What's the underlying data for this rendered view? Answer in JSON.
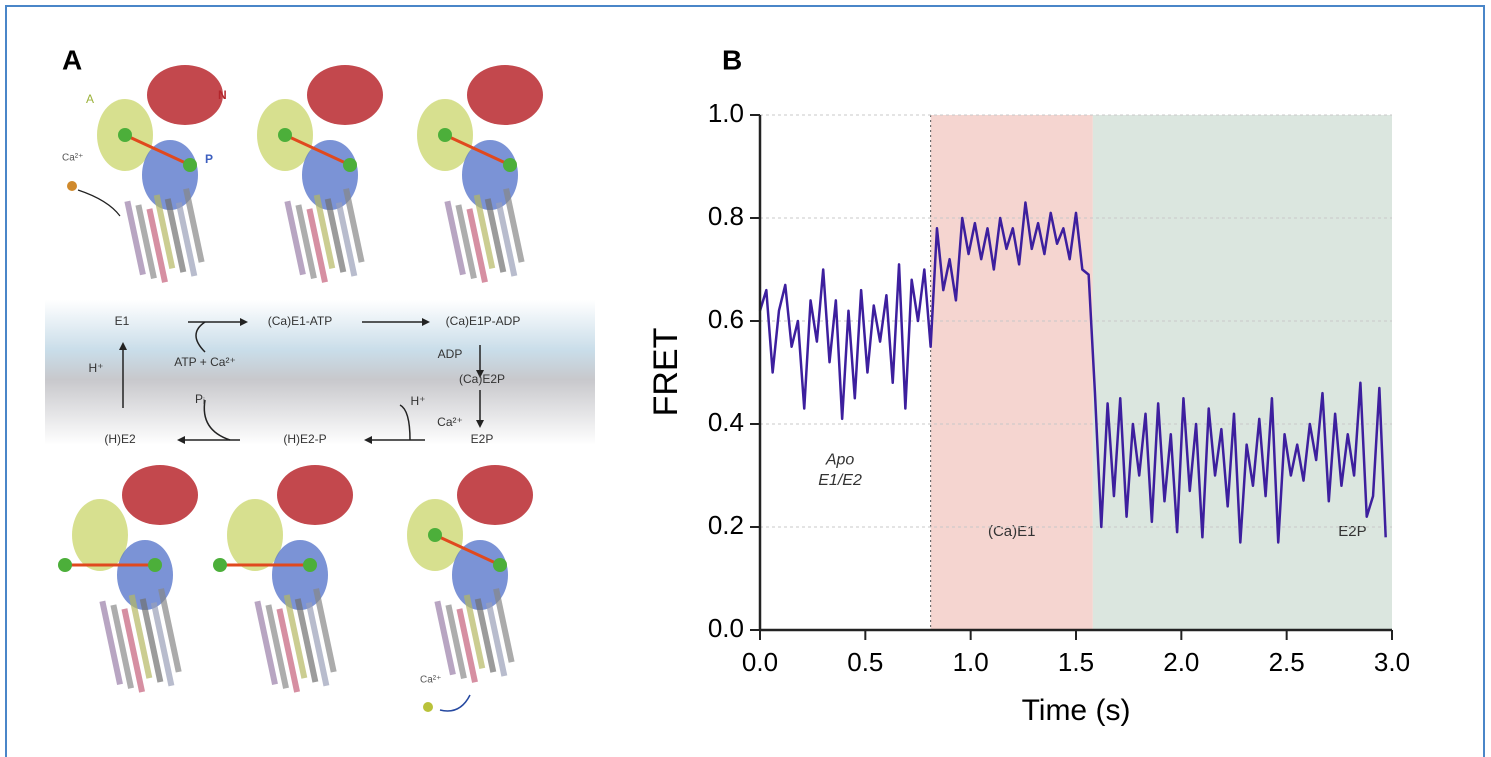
{
  "panel_a": {
    "letter": "A",
    "labels": {
      "e1": "E1",
      "ca_e1_atp": "(Ca)E1-ATP",
      "ca_e1p_adp": "(Ca)E1P-ADP",
      "atp_ca": "ATP + Ca²⁺",
      "adp": "ADP",
      "ca_e2p": "(Ca)E2P",
      "h_left": "H⁺",
      "h_right": "H⁺",
      "ca_release": "Ca²⁺",
      "e2p": "E2P",
      "h_e2_p": "(H)E2-P",
      "h_e2": "(H)E2",
      "pi": "Pᵢ",
      "domain_a": "A",
      "domain_n": "N",
      "domain_p": "P",
      "ca_top": "Ca²⁺",
      "ca_bottom": "Ca²⁺"
    }
  },
  "chart_data": {
    "type": "line",
    "panel_letter": "B",
    "x_label": "Time (s)",
    "y_label": "FRET",
    "x": [
      0.0,
      0.03,
      0.06,
      0.09,
      0.12,
      0.15,
      0.18,
      0.21,
      0.24,
      0.27,
      0.3,
      0.33,
      0.36,
      0.39,
      0.42,
      0.45,
      0.48,
      0.51,
      0.54,
      0.57,
      0.6,
      0.63,
      0.66,
      0.69,
      0.72,
      0.75,
      0.78,
      0.81,
      0.84,
      0.87,
      0.9,
      0.93,
      0.96,
      0.99,
      1.02,
      1.05,
      1.08,
      1.11,
      1.14,
      1.17,
      1.2,
      1.23,
      1.26,
      1.29,
      1.32,
      1.35,
      1.38,
      1.41,
      1.44,
      1.47,
      1.5,
      1.53,
      1.56,
      1.59,
      1.62,
      1.65,
      1.68,
      1.71,
      1.74,
      1.77,
      1.8,
      1.83,
      1.86,
      1.89,
      1.92,
      1.95,
      1.98,
      2.01,
      2.04,
      2.07,
      2.1,
      2.13,
      2.16,
      2.19,
      2.22,
      2.25,
      2.28,
      2.31,
      2.34,
      2.37,
      2.4,
      2.43,
      2.46,
      2.49,
      2.52,
      2.55,
      2.58,
      2.61,
      2.64,
      2.67,
      2.7,
      2.73,
      2.76,
      2.79,
      2.82,
      2.85,
      2.88,
      2.91,
      2.94,
      2.97
    ],
    "series": [
      {
        "color": "#3d1f9e",
        "values": [
          0.62,
          0.66,
          0.5,
          0.62,
          0.67,
          0.55,
          0.6,
          0.43,
          0.64,
          0.56,
          0.7,
          0.52,
          0.64,
          0.41,
          0.62,
          0.45,
          0.66,
          0.5,
          0.63,
          0.56,
          0.65,
          0.48,
          0.71,
          0.43,
          0.68,
          0.6,
          0.7,
          0.55,
          0.78,
          0.66,
          0.72,
          0.64,
          0.8,
          0.73,
          0.79,
          0.72,
          0.78,
          0.7,
          0.8,
          0.74,
          0.78,
          0.71,
          0.83,
          0.74,
          0.79,
          0.73,
          0.81,
          0.75,
          0.78,
          0.72,
          0.81,
          0.7,
          0.69,
          0.46,
          0.2,
          0.44,
          0.26,
          0.45,
          0.22,
          0.4,
          0.3,
          0.42,
          0.21,
          0.44,
          0.25,
          0.38,
          0.19,
          0.45,
          0.27,
          0.4,
          0.18,
          0.43,
          0.3,
          0.39,
          0.24,
          0.42,
          0.17,
          0.36,
          0.28,
          0.41,
          0.26,
          0.45,
          0.17,
          0.38,
          0.3,
          0.36,
          0.29,
          0.4,
          0.33,
          0.46,
          0.25,
          0.42,
          0.28,
          0.38,
          0.3,
          0.48,
          0.22,
          0.26,
          0.47,
          0.18
        ]
      }
    ],
    "xlim": [
      0,
      3.0
    ],
    "ylim": [
      0,
      1.0
    ],
    "xticks": [
      {
        "value": 0,
        "label": "0.0"
      },
      0.5,
      {
        "value": 1,
        "label": "1.0"
      },
      1.5,
      {
        "value": 2,
        "label": "2.0"
      },
      2.5,
      {
        "value": 3,
        "label": "3.0"
      }
    ],
    "yticks": [
      {
        "value": 0,
        "label": "0.0"
      },
      0.2,
      0.4,
      0.6,
      0.8,
      {
        "value": 1,
        "label": "1.0"
      }
    ],
    "grid": true,
    "regions": [
      {
        "start": 0.81,
        "end": 1.58,
        "color": "#f5d5d0",
        "label": "(Ca)E1"
      },
      {
        "start": 1.58,
        "end": 3.0,
        "color": "#dbe6df",
        "label": "E2P"
      }
    ],
    "annotations": [
      {
        "text": "Apo",
        "x": 0.38,
        "y": 0.33
      },
      {
        "text": "E1/E2",
        "x": 0.38,
        "y": 0.29
      }
    ]
  }
}
